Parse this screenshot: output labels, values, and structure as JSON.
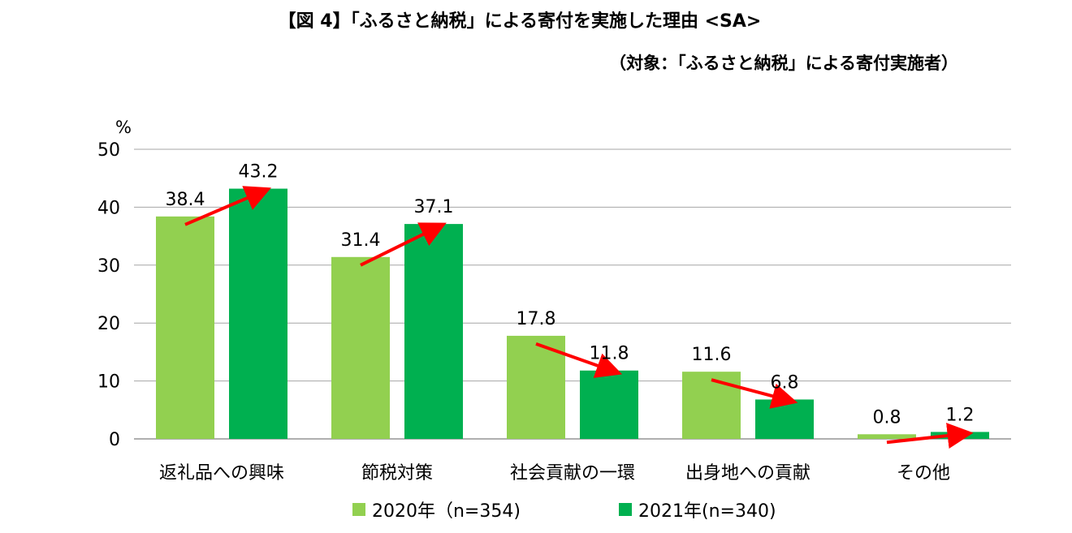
{
  "title": "【図 4】「ふるさと納税」による寄付を実施した理由 <SA>",
  "subtitle": "（対象：「ふるさと納税」による寄付実施者）",
  "colors": {
    "series_2020": "#92d050",
    "series_2021": "#00b050",
    "arrow": "#ff0000",
    "grid": "#a6a6a6"
  },
  "chart_data": {
    "type": "bar",
    "title": "【図 4】「ふるさと納税」による寄付を実施した理由 <SA>",
    "subtitle": "（対象：「ふるさと納税」による寄付実施者）",
    "ylabel": "%",
    "ylim": [
      0,
      50
    ],
    "yticks": [
      "0",
      "10",
      "20",
      "30",
      "40",
      "50"
    ],
    "grid": true,
    "legend_position": "bottom",
    "categories": [
      "返礼品への興味",
      "節税対策",
      "社会貢献の一環",
      "出身地への貢献",
      "その他"
    ],
    "series": [
      {
        "name": "2020年（n=354)",
        "values": [
          38.4,
          31.4,
          17.8,
          11.6,
          0.8
        ],
        "labels": [
          "38.4",
          "31.4",
          "17.8",
          "11.6",
          "0.8"
        ]
      },
      {
        "name": "2021年(n=340)",
        "values": [
          43.2,
          37.1,
          11.8,
          6.8,
          1.2
        ],
        "labels": [
          "43.2",
          "37.1",
          "11.8",
          "6.8",
          "1.2"
        ]
      }
    ]
  }
}
